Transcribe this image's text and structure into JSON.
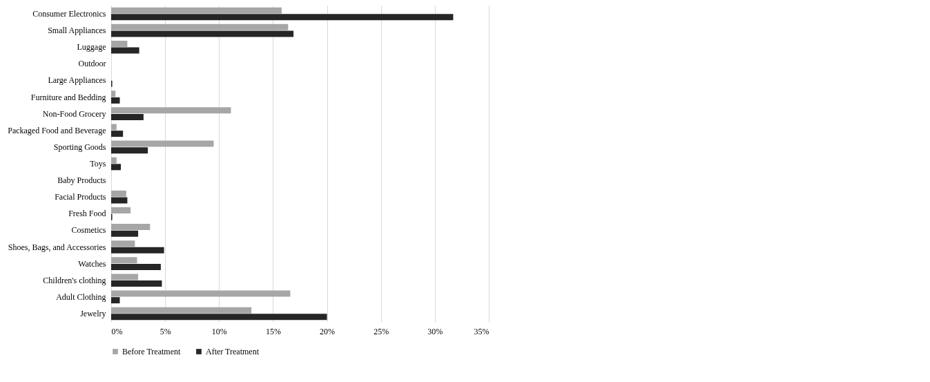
{
  "chart_data": {
    "type": "bar",
    "orientation": "horizontal",
    "categories": [
      "Consumer Electronics",
      "Small Appliances",
      "Luggage",
      "Outdoor",
      "Large Appliances",
      "Furniture and Bedding",
      "Non-Food Grocery",
      "Packaged Food and Beverage",
      "Sporting Goods",
      "Toys",
      "Baby Products",
      "Facial Products",
      "Fresh Food",
      "Cosmetics",
      "Shoes, Bags, and Accessories",
      "Watches",
      "Children's clothing",
      "Adult Clothing",
      "Jewelry"
    ],
    "series": [
      {
        "name": "Before Treatment",
        "color": "#a6a6a6",
        "values": [
          15.8,
          16.4,
          1.5,
          0,
          null,
          0.4,
          11.1,
          0.5,
          9.5,
          0.5,
          0,
          1.4,
          1.8,
          3.6,
          2.2,
          2.4,
          2.5,
          16.6,
          13.0
        ]
      },
      {
        "name": "After Treatment",
        "color": "#262626",
        "values": [
          31.7,
          16.9,
          2.6,
          0,
          0.1,
          0.8,
          3.0,
          1.1,
          3.4,
          0.9,
          0,
          1.5,
          0.1,
          2.5,
          4.9,
          4.6,
          4.7,
          0.8,
          20.0
        ]
      }
    ],
    "xlim": [
      0,
      35
    ],
    "xticks": [
      {
        "value": 0,
        "label": "0%"
      },
      {
        "value": 5,
        "label": "5%"
      },
      {
        "value": 10,
        "label": "10%"
      },
      {
        "value": 15,
        "label": "15%"
      },
      {
        "value": 20,
        "label": "20%"
      },
      {
        "value": 25,
        "label": "25%"
      },
      {
        "value": 30,
        "label": "30%"
      },
      {
        "value": 35,
        "label": "35%"
      }
    ],
    "grid": "x",
    "legend": "bottom"
  }
}
